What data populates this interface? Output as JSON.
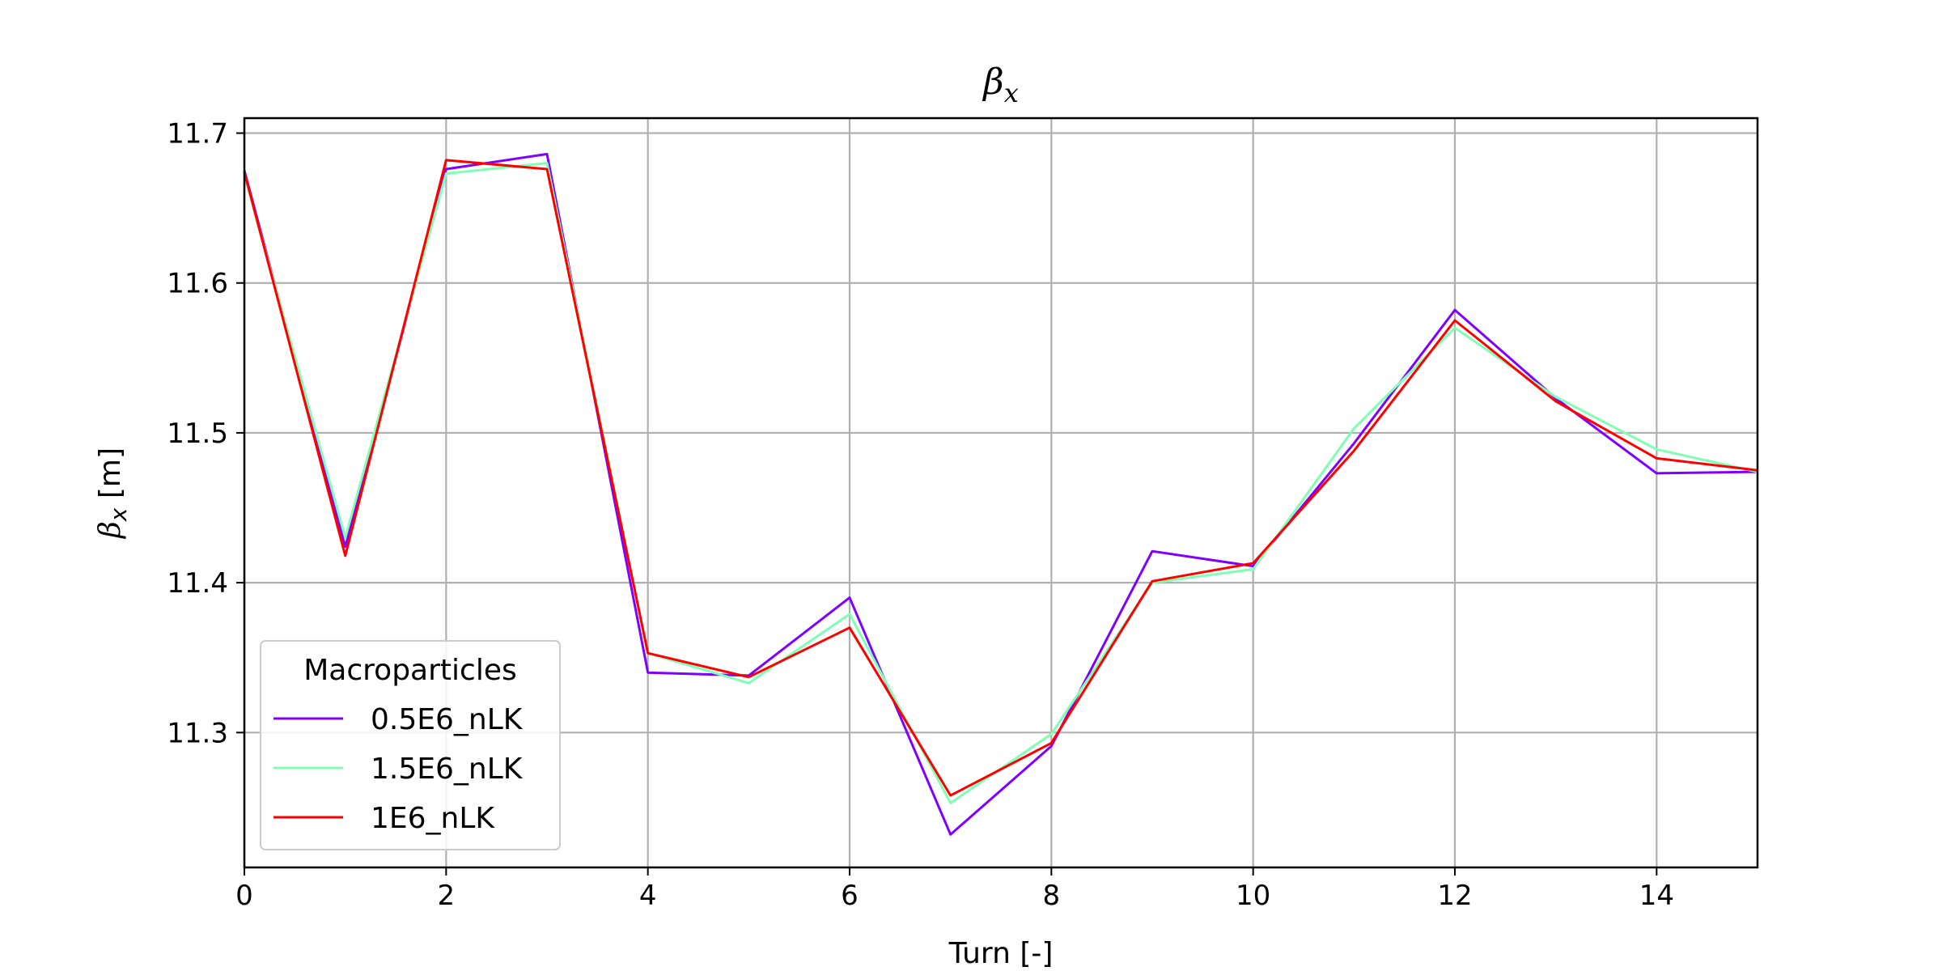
{
  "chart_data": {
    "type": "line",
    "title": "β",
    "title_sub": "x",
    "xlabel": "Turn [-]",
    "ylabel_main": "β",
    "ylabel_sub": "x",
    "ylabel_unit": " [m]",
    "xlim": [
      0,
      15
    ],
    "ylim": [
      11.21,
      11.71
    ],
    "xticks": [
      "0",
      "2",
      "4",
      "6",
      "8",
      "10",
      "12",
      "14"
    ],
    "xtick_values": [
      0,
      2,
      4,
      6,
      8,
      10,
      12,
      14
    ],
    "yticks": [
      "11.3",
      "11.4",
      "11.5",
      "11.6",
      "11.7"
    ],
    "ytick_values": [
      11.3,
      11.4,
      11.5,
      11.6,
      11.7
    ],
    "grid": true,
    "legend": {
      "title": "Macroparticles",
      "placement": "lower-left"
    },
    "x": [
      0,
      1,
      2,
      3,
      4,
      5,
      6,
      7,
      8,
      9,
      10,
      11,
      12,
      13,
      14,
      15
    ],
    "series": [
      {
        "name": "0.5E6_nLK",
        "color": "#8000ff",
        "values": [
          11.675,
          11.424,
          11.676,
          11.686,
          11.34,
          11.338,
          11.39,
          11.232,
          11.291,
          11.421,
          11.411,
          11.493,
          11.582,
          11.523,
          11.473,
          11.474
        ]
      },
      {
        "name": "1.5E6_nLK",
        "color": "#80ffb4",
        "values": [
          11.672,
          11.43,
          11.673,
          11.68,
          11.353,
          11.333,
          11.379,
          11.253,
          11.299,
          11.4,
          11.409,
          11.503,
          11.57,
          11.524,
          11.489,
          11.474
        ]
      },
      {
        "name": "1E6_nLK",
        "color": "#ff0000",
        "values": [
          11.674,
          11.418,
          11.682,
          11.676,
          11.353,
          11.337,
          11.37,
          11.258,
          11.293,
          11.401,
          11.413,
          11.488,
          11.575,
          11.521,
          11.483,
          11.475
        ]
      }
    ]
  }
}
